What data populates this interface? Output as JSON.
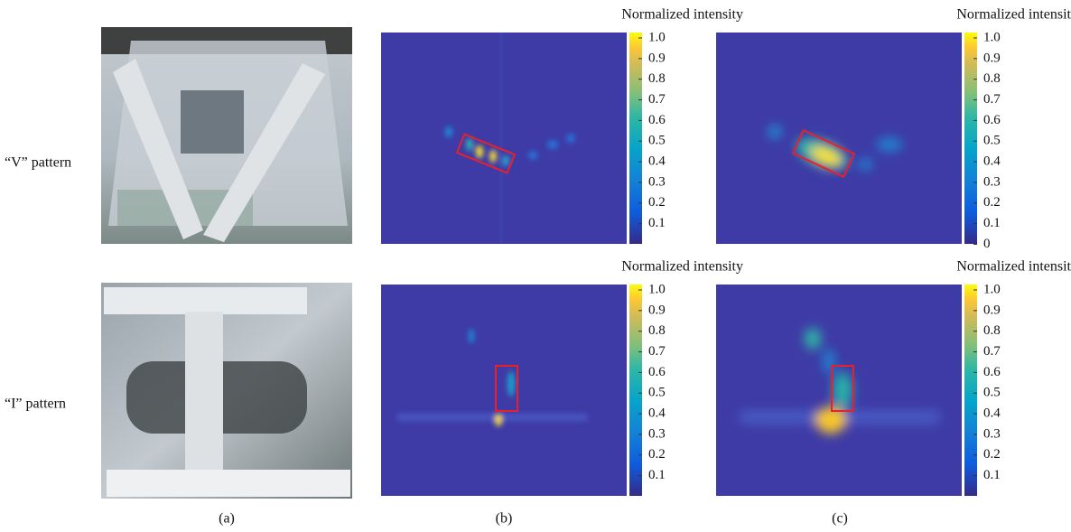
{
  "row_labels": [
    "“V” pattern",
    "“I” pattern"
  ],
  "panel_labels": [
    "(a)",
    "(b)",
    "(c)"
  ],
  "heatmaps": [
    {
      "title": "Normalized intensity",
      "colorbar_ticks": [
        "1.0",
        "0.9",
        "0.8",
        "0.7",
        "0.6",
        "0.5",
        "0.4",
        "0.3",
        "0.2",
        "0.1"
      ]
    },
    {
      "title": "Normalized intensity",
      "colorbar_ticks": [
        "1.0",
        "0.9",
        "0.8",
        "0.7",
        "0.6",
        "0.5",
        "0.4",
        "0.3",
        "0.2",
        "0.1",
        "0"
      ]
    },
    {
      "title": "Normalized intensity",
      "colorbar_ticks": [
        "1.0",
        "0.9",
        "0.8",
        "0.7",
        "0.6",
        "0.5",
        "0.4",
        "0.3",
        "0.2",
        "0.1"
      ]
    },
    {
      "title": "Normalized intensity",
      "colorbar_ticks": [
        "1.0",
        "0.9",
        "0.8",
        "0.7",
        "0.6",
        "0.5",
        "0.4",
        "0.3",
        "0.2",
        "0.1"
      ]
    }
  ]
}
